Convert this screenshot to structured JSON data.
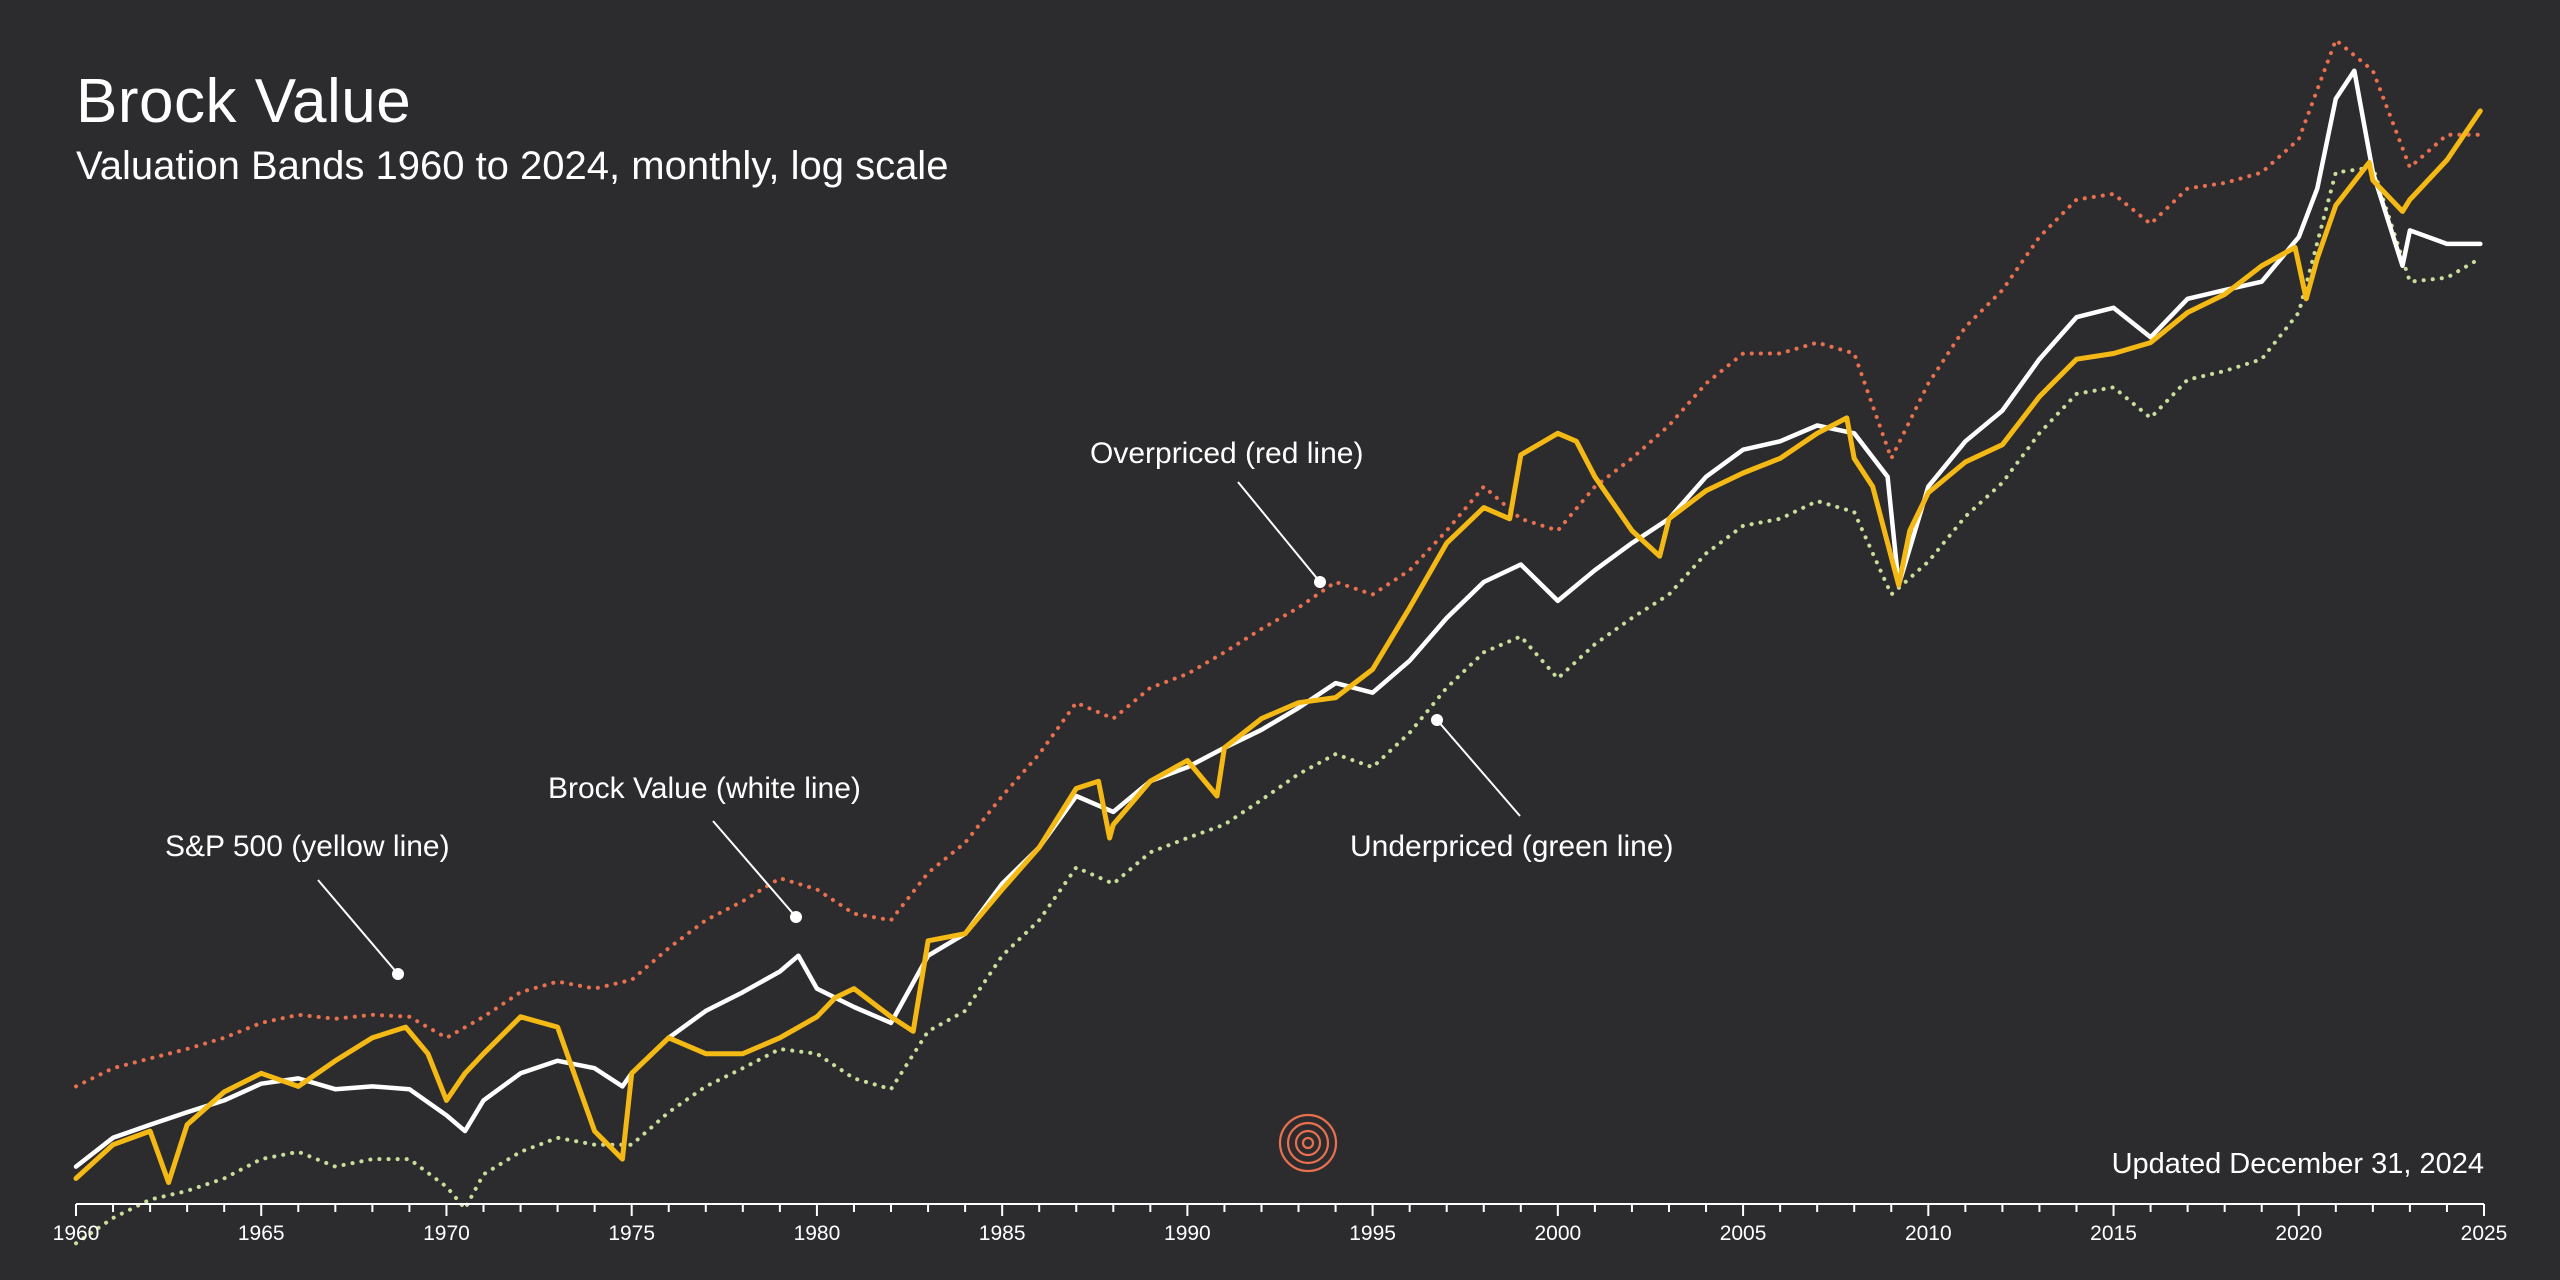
{
  "title": "Brock Value",
  "subtitle": "Valuation Bands 1960 to 2024, monthly, log scale",
  "updated": "Updated December 31, 2024",
  "annotations": {
    "sp500": "S&P 500 (yellow line)",
    "brock": "Brock Value (white line)",
    "overpriced": "Overpriced (red line)",
    "underpriced": "Underpriced (green line)"
  },
  "logo_icon": "concentric-circles-icon",
  "colors": {
    "background": "#2c2c2f",
    "sp500": "#f5b915",
    "brock": "#ffffff",
    "overpriced": "#e8704e",
    "underpriced": "#c9dd9a",
    "logo": "#e8704e"
  },
  "chart_data": {
    "type": "line",
    "title": "Brock Value",
    "subtitle": "Valuation Bands 1960 to 2024, monthly, log scale",
    "xlabel": "",
    "ylabel": "",
    "yscale": "log",
    "xlim": [
      1960,
      2025
    ],
    "ylim": [
      40,
      8000
    ],
    "grid": false,
    "xticks": [
      "1960",
      "1965",
      "1970",
      "1975",
      "1980",
      "1985",
      "1990",
      "1995",
      "2000",
      "2005",
      "2010",
      "2015",
      "2020",
      "2025"
    ],
    "series": [
      {
        "name": "S&P 500",
        "style": "solid",
        "x": [
          1960,
          1961,
          1962,
          1962.5,
          1963,
          1964,
          1965,
          1966,
          1967,
          1968,
          1968.9,
          1969.5,
          1970,
          1970.5,
          1971,
          1972,
          1973,
          1974,
          1974.75,
          1975,
          1976,
          1977,
          1978,
          1979,
          1980,
          1980.5,
          1981,
          1982,
          1982.6,
          1983,
          1984,
          1985,
          1986,
          1987,
          1987.6,
          1987.9,
          1988,
          1989,
          1990,
          1990.8,
          1991,
          1992,
          1993,
          1994,
          1995,
          1996,
          1997,
          1998,
          1998.7,
          1999,
          2000,
          2000.5,
          2001,
          2002,
          2002.75,
          2003,
          2004,
          2005,
          2006,
          2007,
          2007.8,
          2008,
          2008.5,
          2009.2,
          2009.5,
          2010,
          2011,
          2012,
          2013,
          2014,
          2015,
          2016,
          2017,
          2018,
          2019,
          2019.9,
          2020.2,
          2020.5,
          2021,
          2021.9,
          2022,
          2022.8,
          2023,
          2024,
          2024.9
        ],
        "values": [
          57,
          66,
          70,
          56,
          72,
          83,
          90,
          85,
          95,
          105,
          110,
          98,
          80,
          90,
          98,
          115,
          110,
          70,
          62,
          90,
          105,
          98,
          98,
          105,
          115,
          125,
          130,
          115,
          108,
          160,
          165,
          200,
          240,
          310,
          320,
          250,
          265,
          320,
          350,
          300,
          370,
          420,
          450,
          460,
          520,
          680,
          900,
          1050,
          1000,
          1320,
          1450,
          1400,
          1200,
          950,
          850,
          1000,
          1130,
          1220,
          1300,
          1450,
          1550,
          1300,
          1150,
          750,
          950,
          1120,
          1280,
          1380,
          1700,
          2000,
          2050,
          2150,
          2450,
          2650,
          3000,
          3250,
          2600,
          3100,
          3900,
          4700,
          4350,
          3800,
          4000,
          4750,
          5880
        ]
      },
      {
        "name": "Brock Value",
        "style": "solid",
        "x": [
          1960,
          1961,
          1962,
          1963,
          1964,
          1965,
          1966,
          1967,
          1968,
          1969,
          1970,
          1970.5,
          1971,
          1972,
          1973,
          1974,
          1974.75,
          1975,
          1976,
          1977,
          1978,
          1979,
          1979.5,
          1980,
          1981,
          1982,
          1983,
          1984,
          1985,
          1986,
          1987,
          1988,
          1989,
          1990,
          1991,
          1992,
          1993,
          1994,
          1995,
          1996,
          1997,
          1998,
          1999,
          2000,
          2001,
          2002,
          2003,
          2004,
          2005,
          2006,
          2007,
          2008,
          2008.9,
          2009.2,
          2010,
          2011,
          2012,
          2013,
          2014,
          2015,
          2016,
          2017,
          2018,
          2019,
          2020,
          2020.5,
          2021,
          2021.5,
          2022,
          2022.8,
          2023,
          2024,
          2024.9
        ],
        "values": [
          60,
          68,
          72,
          76,
          80,
          86,
          88,
          84,
          85,
          84,
          75,
          70,
          80,
          90,
          95,
          92,
          85,
          90,
          105,
          118,
          128,
          140,
          150,
          130,
          120,
          112,
          150,
          165,
          205,
          240,
          300,
          280,
          320,
          340,
          370,
          400,
          440,
          490,
          470,
          540,
          650,
          760,
          820,
          700,
          800,
          900,
          1000,
          1200,
          1350,
          1400,
          1500,
          1450,
          1200,
          750,
          1150,
          1400,
          1600,
          2000,
          2400,
          2500,
          2200,
          2600,
          2700,
          2800,
          3400,
          4200,
          6200,
          7000,
          4500,
          3000,
          3500,
          3300,
          3300
        ]
      },
      {
        "name": "Overpriced",
        "style": "dotted",
        "x": [
          1960,
          1961,
          1962,
          1963,
          1964,
          1965,
          1966,
          1967,
          1968,
          1969,
          1970,
          1971,
          1972,
          1973,
          1974,
          1975,
          1976,
          1977,
          1978,
          1979,
          1980,
          1981,
          1982,
          1983,
          1984,
          1985,
          1986,
          1987,
          1988,
          1989,
          1990,
          1991,
          1992,
          1993,
          1994,
          1995,
          1996,
          1997,
          1998,
          1999,
          2000,
          2001,
          2002,
          2003,
          2004,
          2005,
          2006,
          2007,
          2008,
          2009,
          2010,
          2011,
          2012,
          2013,
          2014,
          2015,
          2016,
          2017,
          2018,
          2019,
          2020,
          2021,
          2022,
          2023,
          2024,
          2024.9
        ],
        "values": [
          85,
          92,
          96,
          100,
          105,
          112,
          116,
          114,
          116,
          115,
          105,
          115,
          128,
          134,
          130,
          135,
          155,
          175,
          190,
          210,
          200,
          180,
          175,
          215,
          245,
          300,
          360,
          450,
          420,
          480,
          510,
          560,
          620,
          680,
          760,
          720,
          800,
          950,
          1150,
          1000,
          950,
          1150,
          1300,
          1500,
          1800,
          2050,
          2050,
          2150,
          2050,
          1300,
          1800,
          2300,
          2700,
          3400,
          4000,
          4100,
          3600,
          4200,
          4300,
          4500,
          5200,
          8000,
          7000,
          4600,
          5300,
          5300
        ]
      },
      {
        "name": "Underpriced",
        "style": "dotted",
        "x": [
          1960,
          1961,
          1962,
          1963,
          1964,
          1965,
          1966,
          1967,
          1968,
          1969,
          1970,
          1970.5,
          1971,
          1972,
          1973,
          1974,
          1975,
          1976,
          1977,
          1978,
          1979,
          1980,
          1981,
          1982,
          1983,
          1984,
          1985,
          1986,
          1987,
          1988,
          1989,
          1990,
          1991,
          1992,
          1993,
          1994,
          1995,
          1996,
          1997,
          1998,
          1999,
          2000,
          2001,
          2002,
          2003,
          2004,
          2005,
          2006,
          2007,
          2008,
          2009,
          2010,
          2011,
          2012,
          2013,
          2014,
          2015,
          2016,
          2017,
          2018,
          2019,
          2020,
          2021,
          2022,
          2023,
          2024,
          2024.9
        ],
        "values": [
          43,
          48,
          52,
          54,
          57,
          62,
          64,
          60,
          62,
          62,
          55,
          50,
          58,
          64,
          68,
          66,
          66,
          76,
          85,
          92,
          100,
          98,
          88,
          84,
          108,
          118,
          150,
          175,
          220,
          205,
          235,
          250,
          265,
          295,
          330,
          360,
          340,
          395,
          480,
          560,
          600,
          500,
          580,
          650,
          720,
          860,
          970,
          1000,
          1080,
          1030,
          720,
          830,
          1010,
          1170,
          1450,
          1720,
          1770,
          1550,
          1830,
          1900,
          2000,
          2450,
          4500,
          4600,
          2800,
          2850,
          3100
        ]
      }
    ]
  }
}
